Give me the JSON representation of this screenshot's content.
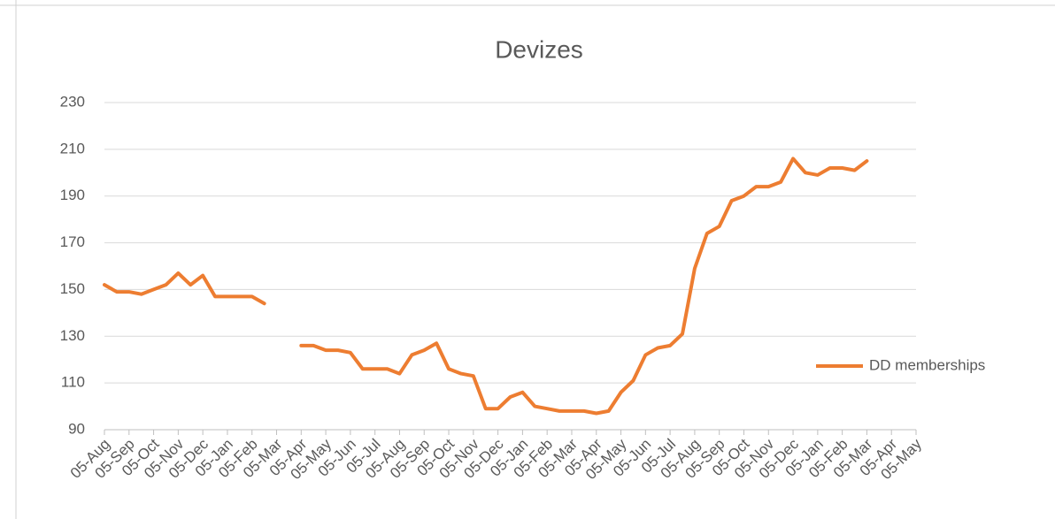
{
  "chart_data": {
    "type": "line",
    "title": "Devizes",
    "categories": [
      "05-Aug",
      null,
      "05-Sep",
      null,
      "05-Oct",
      null,
      "05-Nov",
      null,
      "05-Dec",
      null,
      "05-Jan",
      null,
      "05-Feb",
      null,
      "05-Mar",
      null,
      "05-Apr",
      null,
      "05-May",
      null,
      "05-Jun",
      null,
      "05-Jul",
      null,
      "05-Aug",
      null,
      "05-Sep",
      null,
      "05-Oct",
      null,
      "05-Nov",
      null,
      "05-Dec",
      null,
      "05-Jan",
      null,
      "05-Feb",
      null,
      "05-Mar",
      null,
      "05-Apr",
      null,
      "05-May",
      null,
      "05-Jun",
      null,
      "05-Jul",
      null,
      "05-Aug",
      null,
      "05-Sep",
      null,
      "05-Oct",
      null,
      "05-Nov",
      null,
      "05-Dec",
      null,
      "05-Jan",
      null,
      "05-Feb",
      null,
      "05-Mar",
      null,
      "05-Apr",
      null,
      "05-May"
    ],
    "series": [
      {
        "name": "DD memberships",
        "color": "#ed7d31",
        "values": [
          152,
          149,
          149,
          148,
          150,
          152,
          157,
          152,
          156,
          147,
          147,
          147,
          147,
          144,
          null,
          null,
          126,
          126,
          124,
          124,
          123,
          116,
          116,
          116,
          114,
          122,
          124,
          127,
          116,
          114,
          113,
          99,
          99,
          104,
          106,
          100,
          99,
          98,
          98,
          98,
          97,
          98,
          106,
          111,
          122,
          125,
          126,
          131,
          159,
          174,
          177,
          188,
          190,
          194,
          194,
          196,
          206,
          200,
          199,
          202,
          202,
          201,
          205,
          null,
          null,
          null,
          null
        ]
      }
    ],
    "ylim": [
      90,
      230
    ],
    "yticks": [
      90,
      110,
      130,
      150,
      170,
      190,
      210,
      230
    ],
    "grid": true,
    "legend": "right"
  }
}
